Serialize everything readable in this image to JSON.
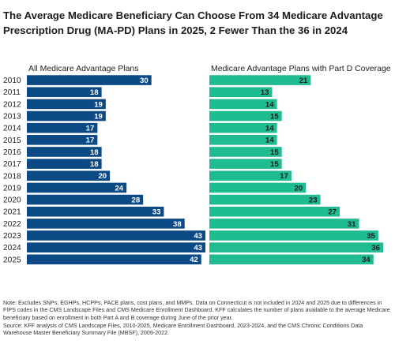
{
  "chart_data": {
    "type": "bar",
    "orientation": "horizontal",
    "title_lines": [
      "The Average Medicare Beneficiary Can Choose From 34 Medicare Advantage",
      "Prescription Drug (MA-PD) Plans in 2025, 2 Fewer Than the 36 in 2024"
    ],
    "categories": [
      "2010",
      "2011",
      "2012",
      "2013",
      "2014",
      "2015",
      "2016",
      "2017",
      "2018",
      "2019",
      "2020",
      "2021",
      "2022",
      "2023",
      "2024",
      "2025"
    ],
    "series": [
      {
        "name": "All Medicare Advantage Plans",
        "color": "#0b4a85",
        "label_color": "#ffffff",
        "values": [
          30,
          18,
          19,
          19,
          17,
          17,
          18,
          18,
          20,
          24,
          28,
          33,
          38,
          43,
          43,
          42
        ],
        "xlim": [
          0,
          43
        ]
      },
      {
        "name": "Medicare Advantage Plans with Part D Coverage",
        "color": "#1fbb91",
        "label_color": "#1c1c1c",
        "values": [
          21,
          13,
          14,
          15,
          14,
          14,
          15,
          15,
          17,
          20,
          23,
          27,
          31,
          35,
          36,
          34
        ],
        "xlim": [
          0,
          36
        ]
      }
    ],
    "grid": false,
    "legend": "none"
  },
  "notes": {
    "note": "Note: Excludes SNPs, EGHPs, HCPPs, PACE plans, cost plans, and MMPs. Data on Connecticut is not included in 2024 and 2025 due to differences in FIPS codes in the CMS Landscape Files and CMS Medicare Enrollment Dashboard. KFF calculates the number of plans available to the average Medicare beneficiary based on enrollment in both Part A and B coverage during June of the prior year.",
    "source": "Source: KFF analysis of CMS Landscape Files, 2010-2025, Medicare Enrollment Dashboard, 2023-2024, and the CMS Chronic Conditions Data Warehouse Master Beneficiary Summary File (MBSF), 2009-2022."
  }
}
